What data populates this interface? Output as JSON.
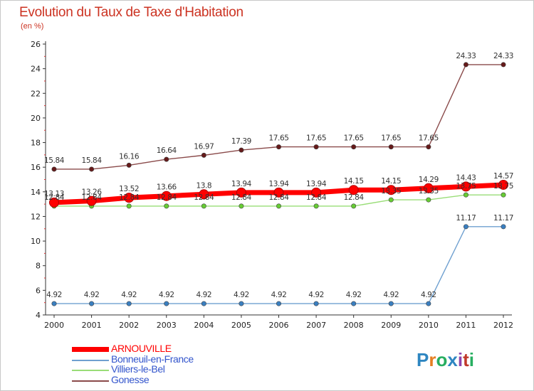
{
  "title": "Evolution du Taux de Taxe d'Habitation",
  "unit": "(en %)",
  "logo": {
    "text": "Proxiti",
    "colors": [
      "#2e86c1",
      "#e67e22",
      "#27ae60",
      "#2e86c1",
      "#8e44ad",
      "#c0392b",
      "#27ae60"
    ]
  },
  "chart_data": {
    "type": "line",
    "x": [
      "2000",
      "2001",
      "2002",
      "2003",
      "2004",
      "2005",
      "2006",
      "2007",
      "2008",
      "2009",
      "2010",
      "2011",
      "2012"
    ],
    "ylim": [
      4,
      26
    ],
    "yticks": [
      4,
      6,
      8,
      10,
      12,
      14,
      16,
      18,
      20,
      22,
      24,
      26
    ],
    "grid": false,
    "legend_position": "bottom-left",
    "series": [
      {
        "name": "ARNOUVILLE",
        "color": "#ff0000",
        "thick": true,
        "values": [
          13.13,
          13.26,
          13.52,
          13.66,
          13.8,
          13.94,
          13.94,
          13.94,
          14.15,
          14.15,
          14.29,
          14.43,
          14.57
        ],
        "labels": [
          "13.13",
          "13.26",
          "13.52",
          "13.66",
          "13.8",
          "13.94",
          "13.94",
          "13.94",
          "14.15",
          "14.15",
          "14.29",
          "14.43",
          "14.57"
        ]
      },
      {
        "name": "Bonneuil-en-France",
        "color": "#6fa0d0",
        "marker": "#3a7fc0",
        "values": [
          4.92,
          4.92,
          4.92,
          4.92,
          4.92,
          4.92,
          4.92,
          4.92,
          4.92,
          4.92,
          4.92,
          11.17,
          11.17
        ],
        "labels": [
          "4.92",
          "4.92",
          "4.92",
          "4.92",
          "4.92",
          "4.92",
          "4.92",
          "4.92",
          "4.92",
          "4.92",
          "4.92",
          "11.17",
          "11.17"
        ]
      },
      {
        "name": "Villiers-le-Bel",
        "color": "#99dd77",
        "marker": "#66cc33",
        "values": [
          12.84,
          12.84,
          12.84,
          12.84,
          12.84,
          12.84,
          12.84,
          12.84,
          12.84,
          13.35,
          13.35,
          13.75,
          13.75
        ],
        "labels": [
          "12.84",
          "12.84",
          "12.84",
          "12.84",
          "12.84",
          "12.84",
          "12.84",
          "12.84",
          "12.84",
          "13.35",
          "13.35",
          "13.75",
          "13.75"
        ]
      },
      {
        "name": "Gonesse",
        "color": "#8a4a4a",
        "marker": "#661a1a",
        "values": [
          15.84,
          15.84,
          16.16,
          16.64,
          16.97,
          17.39,
          17.65,
          17.65,
          17.65,
          17.65,
          17.65,
          24.33,
          24.33
        ],
        "labels": [
          "15.84",
          "15.84",
          "16.16",
          "16.64",
          "16.97",
          "17.39",
          "17.65",
          "17.65",
          "17.65",
          "17.65",
          "17.65",
          "24.33",
          "24.33"
        ]
      }
    ]
  }
}
